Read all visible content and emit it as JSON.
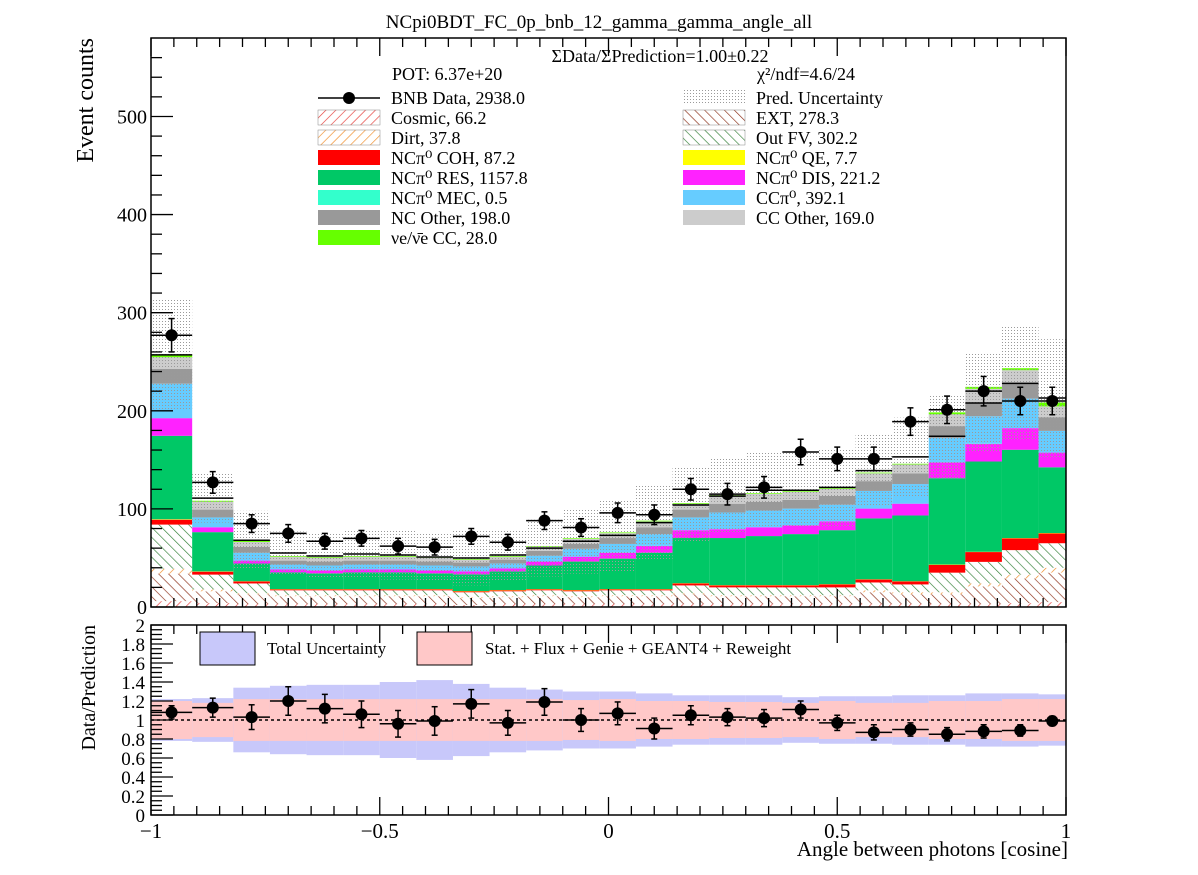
{
  "chart_data": [
    {
      "type": "bar",
      "stacked": true,
      "title": "NCpi0BDT_FC_0p_bnb_12_gamma_gamma_angle_all",
      "subtitle": "ΣData/ΣPrediction=1.00±0.22",
      "pot": "POT: 6.37e+20",
      "chi2_label": "χ²/ndf=4.6/24",
      "ylabel": "Event counts",
      "xlim": [
        -1,
        1
      ],
      "ylim": [
        0,
        580
      ],
      "yticks": [
        0,
        100,
        200,
        300,
        400,
        500
      ],
      "grid": false,
      "legend_position": "top",
      "bin_edges": [
        -1,
        -0.91,
        -0.82,
        -0.74,
        -0.66,
        -0.58,
        -0.5,
        -0.42,
        -0.34,
        -0.26,
        -0.18,
        -0.1,
        -0.02,
        0.06,
        0.14,
        0.22,
        0.3,
        0.38,
        0.46,
        0.54,
        0.62,
        0.7,
        0.78,
        0.86,
        0.94,
        1
      ],
      "series": [
        {
          "name": "Cosmic, 66.2",
          "color": "#e53935",
          "fill": "hatch",
          "values": [
            6,
            4,
            3,
            3,
            3,
            3,
            3,
            3,
            2,
            3,
            3,
            3,
            3,
            3,
            3,
            3,
            3,
            3,
            3,
            3,
            3,
            3,
            3,
            4,
            5
          ]
        },
        {
          "name": "EXT, 278.3",
          "color": "#8b2e16",
          "fill": "hatch",
          "values": [
            28,
            12,
            10,
            8,
            8,
            8,
            8,
            8,
            7,
            7,
            8,
            7,
            8,
            8,
            10,
            8,
            8,
            8,
            8,
            12,
            10,
            10,
            18,
            25,
            30
          ]
        },
        {
          "name": "Dirt, 37.8",
          "color": "#f08a24",
          "fill": "hatch",
          "values": [
            5,
            2,
            1,
            1,
            1,
            1,
            1,
            1,
            1,
            1,
            1,
            1,
            1,
            1,
            1,
            1,
            1,
            1,
            1,
            2,
            2,
            2,
            3,
            4,
            5
          ]
        },
        {
          "name": "Out FV, 302.2",
          "color": "#2e7d32",
          "fill": "hatch",
          "values": [
            45,
            15,
            10,
            5,
            5,
            5,
            5,
            5,
            5,
            5,
            5,
            5,
            5,
            5,
            8,
            8,
            8,
            8,
            8,
            8,
            8,
            20,
            22,
            25,
            25
          ]
        },
        {
          "name": "NCπ⁰ COH,  87.2",
          "color": "#ff0000",
          "values": [
            5,
            3,
            2,
            1,
            1,
            1,
            1,
            1,
            1,
            1,
            1,
            1,
            1,
            1,
            2,
            2,
            2,
            2,
            3,
            3,
            3,
            8,
            10,
            12,
            10
          ]
        },
        {
          "name": "NCπ⁰ QE,  7.7",
          "color": "#ffff00",
          "values": [
            0.5,
            0.3,
            0.3,
            0.3,
            0.3,
            0.3,
            0.3,
            0.3,
            0.3,
            0.3,
            0.3,
            0.3,
            0.3,
            0.3,
            0.3,
            0.3,
            0.3,
            0.3,
            0.3,
            0.3,
            0.3,
            0.3,
            0.3,
            0.3,
            0.4
          ]
        },
        {
          "name": "NCπ⁰ RES,  1157.8",
          "color": "#00c866",
          "values": [
            85,
            40,
            18,
            17,
            16,
            17,
            17,
            16,
            17,
            19,
            24,
            29,
            31,
            37,
            46,
            48,
            50,
            52,
            55,
            62,
            67,
            88,
            92,
            90,
            67
          ]
        },
        {
          "name": "NCπ⁰ DIS,  221.2",
          "color": "#ff22ff",
          "values": [
            18,
            5,
            3,
            3,
            3,
            3,
            3,
            3,
            3,
            3,
            4,
            5,
            6,
            7,
            8,
            9,
            9,
            9,
            9,
            10,
            12,
            16,
            18,
            22,
            15
          ]
        },
        {
          "name": "NCπ⁰ MEC,  0.5",
          "color": "#33ffcc",
          "values": [
            0.1,
            0,
            0,
            0,
            0,
            0,
            0,
            0,
            0,
            0,
            0,
            0,
            0,
            0,
            0,
            0,
            0,
            0,
            0,
            0,
            0,
            0.1,
            0.1,
            0.1,
            0.1
          ]
        },
        {
          "name": "CCπ⁰, 392.1",
          "color": "#66ccff",
          "values": [
            35,
            10,
            8,
            5,
            5,
            5,
            5,
            5,
            5,
            5,
            6,
            8,
            9,
            12,
            13,
            17,
            17,
            17,
            17,
            18,
            20,
            25,
            28,
            30,
            22
          ]
        },
        {
          "name": "NC Other, 198.0",
          "color": "#999999",
          "values": [
            15,
            8,
            6,
            4,
            4,
            4,
            4,
            4,
            4,
            4,
            5,
            5,
            6,
            7,
            8,
            9,
            9,
            9,
            9,
            10,
            11,
            12,
            14,
            15,
            14
          ]
        },
        {
          "name": "CC Other, 169.0",
          "color": "#cccccc",
          "values": [
            12,
            8,
            5,
            4,
            4,
            4,
            4,
            4,
            3,
            3,
            4,
            5,
            5,
            6,
            6,
            8,
            8,
            8,
            7,
            8,
            9,
            12,
            14,
            14,
            11
          ]
        },
        {
          "name": "νe/ν̄e CC, 28.0",
          "color": "#66ff00",
          "values": [
            2.5,
            1,
            1,
            0.7,
            0.7,
            0.7,
            0.7,
            0.7,
            0.7,
            0.7,
            0.7,
            0.7,
            0.7,
            0.7,
            0.7,
            0.7,
            0.7,
            0.7,
            0.7,
            0.7,
            0.7,
            2,
            2,
            2,
            4
          ]
        }
      ],
      "prediction_total": [
        257,
        111,
        68,
        55,
        52,
        54,
        53,
        51,
        50,
        53,
        60,
        67,
        73,
        86,
        104,
        113,
        119,
        119,
        122,
        139,
        153,
        174,
        208,
        228,
        213
      ],
      "prediction_uncertainty": [
        57,
        25,
        30,
        22,
        23,
        24,
        25,
        25,
        28,
        26,
        29,
        33,
        37,
        38,
        38,
        38,
        38,
        38,
        40,
        37,
        40,
        43,
        50,
        58,
        60
      ],
      "pred_uncertainty_name": "Pred. Uncertainty",
      "data_name": "BNB Data, 2938.0",
      "data": [
        277,
        127,
        85,
        75,
        67,
        70,
        62,
        61,
        72,
        66,
        88,
        81,
        96,
        94,
        120,
        115,
        122,
        158,
        151,
        151,
        189,
        201,
        220,
        210,
        210
      ],
      "data_errors": [
        17,
        11,
        9,
        9,
        8,
        8,
        8,
        8,
        8,
        8,
        9,
        9,
        10,
        10,
        11,
        11,
        11,
        13,
        12,
        12,
        14,
        14,
        15,
        14,
        14
      ]
    },
    {
      "type": "scatter",
      "ylabel": "Data/Prediction",
      "xlabel": "Angle between photons [cosine]",
      "xlim": [
        -1,
        1
      ],
      "ylim": [
        0,
        2
      ],
      "yticks": [
        0,
        0.2,
        0.4,
        0.6,
        0.8,
        1,
        1.2,
        1.4,
        1.6,
        1.8,
        2
      ],
      "xticks": [
        -1,
        -0.5,
        0,
        0.5,
        1
      ],
      "xtick_labels": [
        "−1",
        "−0.5",
        "0",
        "0.5",
        "1"
      ],
      "band_names": [
        "Total Uncertainty",
        "Stat. + Flux + Genie + GEANT4 + Reweight"
      ],
      "band_colors": [
        "#c8c8fa",
        "#ffc8c8"
      ],
      "total_uncertainty": [
        0.22,
        0.23,
        0.34,
        0.36,
        0.37,
        0.37,
        0.4,
        0.42,
        0.38,
        0.34,
        0.32,
        0.3,
        0.3,
        0.28,
        0.26,
        0.26,
        0.26,
        0.24,
        0.25,
        0.25,
        0.26,
        0.26,
        0.28,
        0.28,
        0.27
      ],
      "stat_flux_uncertainty": [
        0.2,
        0.18,
        0.22,
        0.22,
        0.22,
        0.22,
        0.22,
        0.22,
        0.22,
        0.22,
        0.22,
        0.21,
        0.22,
        0.2,
        0.2,
        0.19,
        0.19,
        0.18,
        0.2,
        0.18,
        0.18,
        0.2,
        0.2,
        0.22,
        0.22
      ],
      "ratio": [
        1.08,
        1.13,
        1.03,
        1.2,
        1.12,
        1.06,
        0.96,
        0.99,
        1.17,
        0.97,
        1.19,
        1.0,
        1.07,
        0.91,
        1.05,
        1.03,
        1.02,
        1.11,
        0.97,
        0.87,
        0.9,
        0.85,
        0.88,
        0.89,
        0.99
      ],
      "ratio_errors": [
        0.07,
        0.1,
        0.13,
        0.15,
        0.15,
        0.14,
        0.14,
        0.15,
        0.15,
        0.13,
        0.14,
        0.12,
        0.12,
        0.11,
        0.1,
        0.09,
        0.09,
        0.09,
        0.08,
        0.08,
        0.07,
        0.07,
        0.07,
        0.06,
        0.05
      ]
    }
  ]
}
